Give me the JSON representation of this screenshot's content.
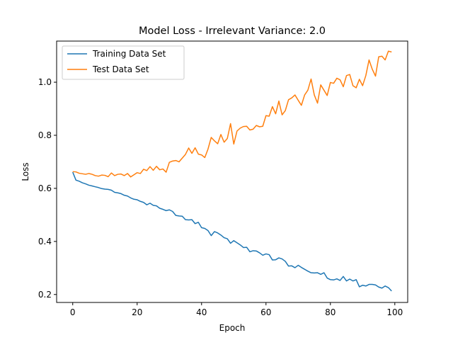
{
  "chart_data": {
    "type": "line",
    "title": "Model Loss - Irrelevant Variance: 2.0",
    "xlabel": "Epoch",
    "ylabel": "Loss",
    "xlim": [
      -5,
      104
    ],
    "ylim": [
      0.17,
      1.155
    ],
    "x_ticks": [
      0,
      20,
      40,
      60,
      80,
      100
    ],
    "y_ticks": [
      0.2,
      0.4,
      0.6,
      0.8,
      1.0
    ],
    "x_tick_labels": [
      "0",
      "20",
      "40",
      "60",
      "80",
      "100"
    ],
    "y_tick_labels": [
      "0.2",
      "0.4",
      "0.6",
      "0.8",
      "1.0"
    ],
    "grid": false,
    "legend_position": "top-left",
    "legend": [
      "Training Data Set",
      "Test Data Set"
    ],
    "colors": {
      "Training Data Set": "#1f77b4",
      "Test Data Set": "#ff7f0e"
    },
    "x": [
      0,
      1,
      2,
      3,
      4,
      5,
      6,
      7,
      8,
      9,
      10,
      11,
      12,
      13,
      14,
      15,
      16,
      17,
      18,
      19,
      20,
      21,
      22,
      23,
      24,
      25,
      26,
      27,
      28,
      29,
      30,
      31,
      32,
      33,
      34,
      35,
      36,
      37,
      38,
      39,
      40,
      41,
      42,
      43,
      44,
      45,
      46,
      47,
      48,
      49,
      50,
      51,
      52,
      53,
      54,
      55,
      56,
      57,
      58,
      59,
      60,
      61,
      62,
      63,
      64,
      65,
      66,
      67,
      68,
      69,
      70,
      71,
      72,
      73,
      74,
      75,
      76,
      77,
      78,
      79,
      80,
      81,
      82,
      83,
      84,
      85,
      86,
      87,
      88,
      89,
      90,
      91,
      92,
      93,
      94,
      95,
      96,
      97,
      98,
      99
    ],
    "series": [
      {
        "name": "Training Data Set",
        "values": [
          0.661,
          0.631,
          0.627,
          0.621,
          0.617,
          0.612,
          0.609,
          0.606,
          0.603,
          0.599,
          0.597,
          0.596,
          0.593,
          0.585,
          0.583,
          0.58,
          0.574,
          0.571,
          0.564,
          0.559,
          0.557,
          0.551,
          0.547,
          0.538,
          0.544,
          0.536,
          0.534,
          0.525,
          0.521,
          0.516,
          0.519,
          0.513,
          0.498,
          0.496,
          0.495,
          0.482,
          0.481,
          0.482,
          0.467,
          0.472,
          0.452,
          0.449,
          0.441,
          0.422,
          0.437,
          0.432,
          0.424,
          0.414,
          0.41,
          0.393,
          0.403,
          0.395,
          0.387,
          0.377,
          0.378,
          0.361,
          0.365,
          0.364,
          0.357,
          0.348,
          0.353,
          0.35,
          0.33,
          0.331,
          0.338,
          0.334,
          0.325,
          0.307,
          0.308,
          0.301,
          0.31,
          0.302,
          0.295,
          0.288,
          0.282,
          0.281,
          0.282,
          0.276,
          0.282,
          0.262,
          0.256,
          0.255,
          0.259,
          0.253,
          0.268,
          0.251,
          0.258,
          0.251,
          0.256,
          0.229,
          0.235,
          0.232,
          0.238,
          0.238,
          0.236,
          0.228,
          0.224,
          0.232,
          0.226,
          0.213
        ]
      },
      {
        "name": "Test Data Set",
        "values": [
          0.663,
          0.662,
          0.657,
          0.655,
          0.653,
          0.656,
          0.653,
          0.648,
          0.646,
          0.65,
          0.649,
          0.644,
          0.658,
          0.648,
          0.653,
          0.654,
          0.648,
          0.656,
          0.643,
          0.651,
          0.659,
          0.656,
          0.672,
          0.667,
          0.682,
          0.668,
          0.683,
          0.67,
          0.673,
          0.661,
          0.698,
          0.703,
          0.705,
          0.7,
          0.714,
          0.728,
          0.752,
          0.732,
          0.753,
          0.729,
          0.726,
          0.716,
          0.748,
          0.792,
          0.779,
          0.768,
          0.803,
          0.774,
          0.788,
          0.844,
          0.767,
          0.816,
          0.827,
          0.833,
          0.834,
          0.82,
          0.823,
          0.837,
          0.832,
          0.834,
          0.874,
          0.872,
          0.908,
          0.881,
          0.929,
          0.877,
          0.893,
          0.934,
          0.941,
          0.952,
          0.932,
          0.913,
          0.952,
          0.97,
          1.012,
          0.952,
          0.921,
          0.99,
          0.97,
          0.95,
          0.999,
          0.996,
          1.015,
          1.009,
          0.983,
          1.025,
          1.029,
          0.987,
          0.979,
          1.011,
          0.987,
          1.025,
          1.084,
          1.049,
          1.023,
          1.096,
          1.098,
          1.084,
          1.117,
          1.114
        ]
      }
    ]
  }
}
